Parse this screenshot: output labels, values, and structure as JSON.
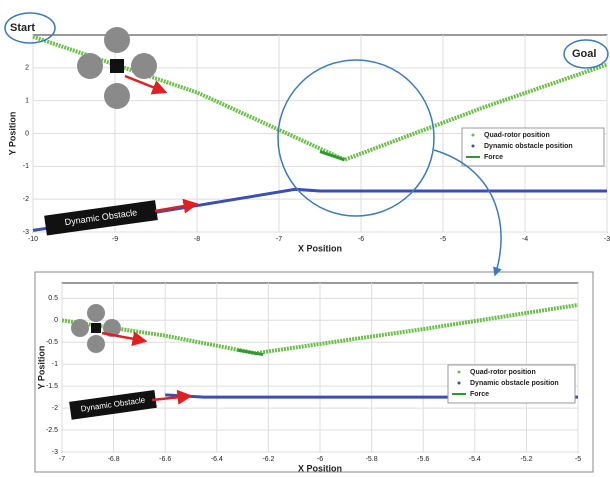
{
  "chart_data": [
    {
      "type": "line",
      "xlabel": "X Position",
      "ylabel": "Y Position",
      "xlim": [
        -10,
        -3
      ],
      "ylim": [
        -3,
        3
      ],
      "xticks": [
        -10,
        -9,
        -8,
        -7,
        -6,
        -5,
        -4,
        -3
      ],
      "yticks": [
        -3,
        -2,
        -1,
        0,
        1,
        2
      ],
      "grid": true,
      "legend": "right",
      "annotations": [
        "Start",
        "Goal",
        "Dynamic Obstacle"
      ],
      "series": [
        {
          "name": "Quad-rotor position",
          "color": "#6cc04a",
          "x": [
            -10,
            -8,
            -6.2,
            -4.5,
            -3
          ],
          "values": [
            2.95,
            1.25,
            -0.8,
            0.8,
            2.1
          ]
        },
        {
          "name": "Dynamic obstacle position",
          "color": "#3a4fb0",
          "x": [
            -10,
            -8.5,
            -6.8,
            -6.5,
            -3
          ],
          "values": [
            -2.95,
            -2.4,
            -1.7,
            -1.75,
            -1.75
          ]
        },
        {
          "name": "Force",
          "color": "#2e9a2e",
          "x": [
            -6.5,
            -6.2
          ],
          "values": [
            -0.55,
            -0.8
          ]
        }
      ]
    },
    {
      "type": "line",
      "xlabel": "X Position",
      "ylabel": "Y Position",
      "xlim": [
        -7,
        -5
      ],
      "ylim": [
        -3,
        0.85
      ],
      "xticks": [
        -7,
        -6.8,
        -6.6,
        -6.4,
        -6.2,
        -6,
        -5.8,
        -5.6,
        -5.4,
        -5.2,
        -5
      ],
      "yticks": [
        -3,
        -2.5,
        -2,
        -1.5,
        -1,
        -0.5,
        0,
        0.5
      ],
      "grid": true,
      "legend": "right",
      "annotations": [
        "Dynamic Obstacle"
      ],
      "series": [
        {
          "name": "Quad-rotor position",
          "color": "#6cc04a",
          "x": [
            -7,
            -6.6,
            -6.25,
            -5.6,
            -5
          ],
          "values": [
            0,
            -0.35,
            -0.75,
            -0.2,
            0.35
          ]
        },
        {
          "name": "Dynamic obstacle position",
          "color": "#3a4fb0",
          "x": [
            -6.6,
            -6.45,
            -5
          ],
          "values": [
            -1.7,
            -1.75,
            -1.75
          ]
        },
        {
          "name": "Force",
          "color": "#2e9a2e",
          "x": [
            -6.32,
            -6.22
          ],
          "values": [
            -0.68,
            -0.78
          ]
        }
      ]
    }
  ]
}
